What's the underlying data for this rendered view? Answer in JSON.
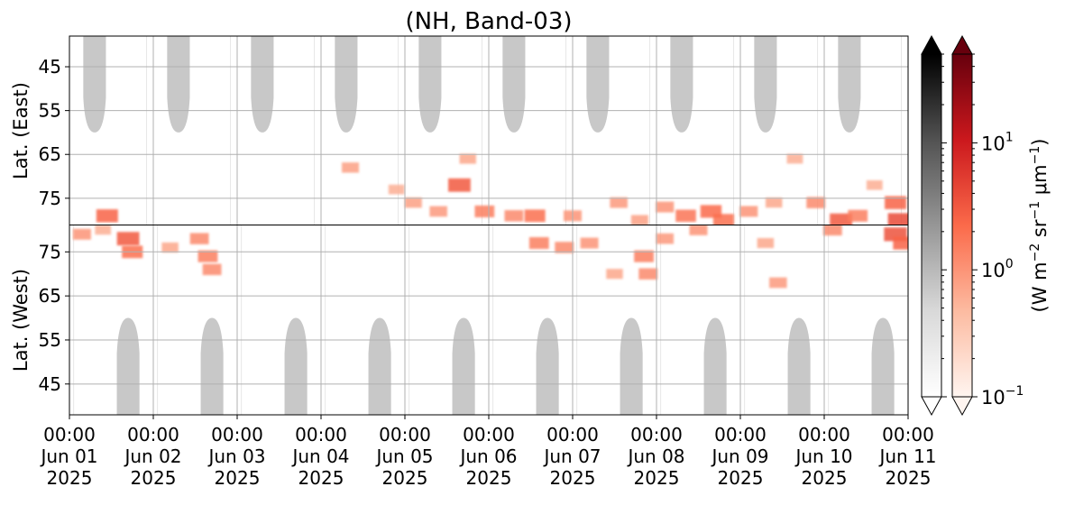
{
  "chart_data": {
    "type": "heatmap",
    "title": "(NH, Band-03)",
    "panels": [
      {
        "name": "East",
        "ylabel": "Lat. (East)",
        "yticks": [
          "45",
          "55",
          "65",
          "75"
        ],
        "ylim": [
          38,
          81
        ],
        "y_direction": "increasing-downward"
      },
      {
        "name": "West",
        "ylabel": "Lat. (West)",
        "yticks": [
          "75",
          "65",
          "55",
          "45"
        ],
        "ylim": [
          38,
          81
        ],
        "y_direction": "increasing-upward"
      }
    ],
    "x_ticks": [
      {
        "time": "00:00",
        "date": "Jun 01",
        "year": "2025"
      },
      {
        "time": "00:00",
        "date": "Jun 02",
        "year": "2025"
      },
      {
        "time": "00:00",
        "date": "Jun 03",
        "year": "2025"
      },
      {
        "time": "00:00",
        "date": "Jun 04",
        "year": "2025"
      },
      {
        "time": "00:00",
        "date": "Jun 05",
        "year": "2025"
      },
      {
        "time": "00:00",
        "date": "Jun 06",
        "year": "2025"
      },
      {
        "time": "00:00",
        "date": "Jun 07",
        "year": "2025"
      },
      {
        "time": "00:00",
        "date": "Jun 08",
        "year": "2025"
      },
      {
        "time": "00:00",
        "date": "Jun 09",
        "year": "2025"
      },
      {
        "time": "00:00",
        "date": "Jun 10",
        "year": "2025"
      },
      {
        "time": "00:00",
        "date": "Jun 11",
        "year": "2025"
      }
    ],
    "xlim": [
      "2025-06-01 00:00",
      "2025-06-11 00:00"
    ],
    "grid": true,
    "daylight_regions": {
      "color": "#c8c8c8",
      "east": [
        {
          "center_day": 0.3,
          "min_lat": 60
        },
        {
          "center_day": 1.3,
          "min_lat": 60
        },
        {
          "center_day": 2.3,
          "min_lat": 60
        },
        {
          "center_day": 3.3,
          "min_lat": 60
        },
        {
          "center_day": 4.3,
          "min_lat": 60
        },
        {
          "center_day": 5.3,
          "min_lat": 60
        },
        {
          "center_day": 6.3,
          "min_lat": 60
        },
        {
          "center_day": 7.3,
          "min_lat": 60
        },
        {
          "center_day": 8.3,
          "min_lat": 60
        },
        {
          "center_day": 9.3,
          "min_lat": 60
        }
      ],
      "west": [
        {
          "center_day": 0.7,
          "min_lat": 60
        },
        {
          "center_day": 1.7,
          "min_lat": 60
        },
        {
          "center_day": 2.7,
          "min_lat": 60
        },
        {
          "center_day": 3.7,
          "min_lat": 60
        },
        {
          "center_day": 4.7,
          "min_lat": 60
        },
        {
          "center_day": 5.7,
          "min_lat": 60
        },
        {
          "center_day": 6.7,
          "min_lat": 60
        },
        {
          "center_day": 7.7,
          "min_lat": 60
        },
        {
          "center_day": 8.7,
          "min_lat": 60
        },
        {
          "center_day": 9.7,
          "min_lat": 60
        }
      ]
    },
    "emission_patches": [
      {
        "panel": "East",
        "day": 0.45,
        "lat": 79,
        "value": 2.5
      },
      {
        "panel": "East",
        "day": 3.35,
        "lat": 68,
        "value": 0.8
      },
      {
        "panel": "East",
        "day": 3.9,
        "lat": 73,
        "value": 0.6
      },
      {
        "panel": "East",
        "day": 4.1,
        "lat": 76,
        "value": 0.8
      },
      {
        "panel": "East",
        "day": 4.4,
        "lat": 78,
        "value": 0.9
      },
      {
        "panel": "East",
        "day": 4.65,
        "lat": 72,
        "value": 3.0
      },
      {
        "panel": "East",
        "day": 4.75,
        "lat": 66,
        "value": 0.7
      },
      {
        "panel": "East",
        "day": 4.95,
        "lat": 78,
        "value": 1.5
      },
      {
        "panel": "East",
        "day": 5.3,
        "lat": 79,
        "value": 1.2
      },
      {
        "panel": "East",
        "day": 5.55,
        "lat": 79,
        "value": 2.0
      },
      {
        "panel": "East",
        "day": 6.0,
        "lat": 79,
        "value": 1.0
      },
      {
        "panel": "East",
        "day": 6.55,
        "lat": 76,
        "value": 0.9
      },
      {
        "panel": "East",
        "day": 6.8,
        "lat": 80,
        "value": 0.8
      },
      {
        "panel": "East",
        "day": 7.1,
        "lat": 77,
        "value": 1.0
      },
      {
        "panel": "East",
        "day": 7.35,
        "lat": 79,
        "value": 1.8
      },
      {
        "panel": "East",
        "day": 7.65,
        "lat": 78,
        "value": 2.2
      },
      {
        "panel": "East",
        "day": 7.8,
        "lat": 80,
        "value": 2.0
      },
      {
        "panel": "East",
        "day": 8.1,
        "lat": 78,
        "value": 1.0
      },
      {
        "panel": "East",
        "day": 8.4,
        "lat": 76,
        "value": 0.7
      },
      {
        "panel": "East",
        "day": 8.65,
        "lat": 66,
        "value": 0.6
      },
      {
        "panel": "East",
        "day": 8.9,
        "lat": 76,
        "value": 1.2
      },
      {
        "panel": "East",
        "day": 9.2,
        "lat": 80,
        "value": 3.0
      },
      {
        "panel": "East",
        "day": 9.4,
        "lat": 79,
        "value": 1.5
      },
      {
        "panel": "East",
        "day": 9.6,
        "lat": 72,
        "value": 0.6
      },
      {
        "panel": "East",
        "day": 9.85,
        "lat": 76,
        "value": 2.5
      },
      {
        "panel": "East",
        "day": 9.9,
        "lat": 80,
        "value": 4.0
      },
      {
        "panel": "West",
        "day": 0.15,
        "lat": 79,
        "value": 1.0
      },
      {
        "panel": "West",
        "day": 0.4,
        "lat": 80,
        "value": 0.6
      },
      {
        "panel": "West",
        "day": 0.7,
        "lat": 78,
        "value": 3.0
      },
      {
        "panel": "West",
        "day": 0.75,
        "lat": 75,
        "value": 2.0
      },
      {
        "panel": "West",
        "day": 1.2,
        "lat": 76,
        "value": 0.7
      },
      {
        "panel": "West",
        "day": 1.55,
        "lat": 78,
        "value": 1.2
      },
      {
        "panel": "West",
        "day": 1.65,
        "lat": 74,
        "value": 1.5
      },
      {
        "panel": "West",
        "day": 1.7,
        "lat": 71,
        "value": 1.2
      },
      {
        "panel": "West",
        "day": 5.6,
        "lat": 77,
        "value": 1.5
      },
      {
        "panel": "West",
        "day": 5.9,
        "lat": 76,
        "value": 1.2
      },
      {
        "panel": "West",
        "day": 6.2,
        "lat": 77,
        "value": 1.0
      },
      {
        "panel": "West",
        "day": 6.5,
        "lat": 70,
        "value": 0.7
      },
      {
        "panel": "West",
        "day": 6.85,
        "lat": 74,
        "value": 1.5
      },
      {
        "panel": "West",
        "day": 6.9,
        "lat": 70,
        "value": 1.2
      },
      {
        "panel": "West",
        "day": 7.1,
        "lat": 78,
        "value": 0.9
      },
      {
        "panel": "West",
        "day": 7.5,
        "lat": 80,
        "value": 1.0
      },
      {
        "panel": "West",
        "day": 8.3,
        "lat": 77,
        "value": 0.7
      },
      {
        "panel": "West",
        "day": 8.45,
        "lat": 68,
        "value": 0.9
      },
      {
        "panel": "West",
        "day": 9.1,
        "lat": 80,
        "value": 1.2
      },
      {
        "panel": "West",
        "day": 9.85,
        "lat": 79,
        "value": 3.5
      },
      {
        "panel": "West",
        "day": 9.95,
        "lat": 77,
        "value": 2.5
      }
    ],
    "colorbars": [
      {
        "name": "gray",
        "colors": [
          "#ffffff",
          "#d9d9d9",
          "#969696",
          "#525252",
          "#000000"
        ]
      },
      {
        "name": "reds",
        "colors": [
          "#fff5f0",
          "#fcbba1",
          "#fb6a4a",
          "#cb181d",
          "#67000d"
        ]
      }
    ],
    "colorbar_ticks": [
      {
        "label": "10",
        "exp": "1",
        "value": 10
      },
      {
        "label": "10",
        "exp": "0",
        "value": 1
      },
      {
        "label": "10",
        "exp": "−1",
        "value": 0.1
      }
    ],
    "colorbar_range": [
      0.1,
      50
    ],
    "colorbar_scale": "log",
    "colorbar_label_parts": [
      {
        "t": "(W m",
        "sup": false
      },
      {
        "t": "−2",
        "sup": true
      },
      {
        "t": " sr",
        "sup": false
      },
      {
        "t": "−1",
        "sup": true
      },
      {
        "t": " μm",
        "sup": false
      },
      {
        "t": "−1",
        "sup": true
      },
      {
        "t": ")",
        "sup": false
      }
    ]
  }
}
